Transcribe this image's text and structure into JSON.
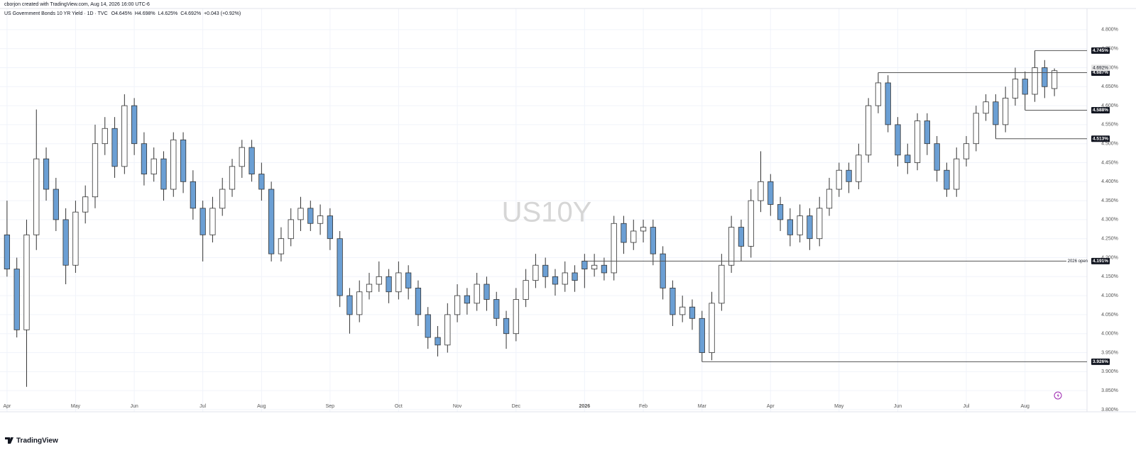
{
  "header": {
    "credit": "cborjon created with TradingView.com, Aug 14, 2026 16:00 UTC-6",
    "logo": "TradingView"
  },
  "chart_data": {
    "type": "candlestick",
    "symbol": "US Government Bonds 10 YR Yield · 1D · TVC",
    "ohlc_text": [
      "O4.645%",
      "H4.698%",
      "L4.625%",
      "C4.692%",
      "+0.043 (+0.92%)"
    ],
    "watermark": "US10Y",
    "categories": [
      "Apr",
      null,
      null,
      null,
      null,
      null,
      null,
      "May",
      null,
      null,
      null,
      null,
      null,
      "Jun",
      null,
      null,
      null,
      null,
      null,
      null,
      "Jul",
      null,
      null,
      null,
      null,
      null,
      "Aug",
      null,
      null,
      null,
      null,
      null,
      null,
      "Sep",
      null,
      null,
      null,
      null,
      null,
      null,
      "Oct",
      null,
      null,
      null,
      null,
      null,
      "Nov",
      null,
      null,
      null,
      null,
      null,
      "Dec",
      null,
      null,
      null,
      null,
      null,
      null,
      "2026",
      null,
      null,
      null,
      null,
      null,
      "Feb",
      null,
      null,
      null,
      null,
      null,
      "Mar",
      null,
      null,
      null,
      null,
      null,
      null,
      "Apr",
      null,
      null,
      null,
      null,
      null,
      null,
      "May",
      null,
      null,
      null,
      null,
      null,
      "Jun",
      null,
      null,
      null,
      null,
      null,
      null,
      "Jul",
      null,
      null,
      null,
      null,
      null,
      "Aug",
      null,
      null,
      null
    ],
    "open": [
      4.26,
      4.17,
      4.01,
      4.26,
      4.46,
      4.38,
      4.3,
      4.18,
      4.32,
      4.36,
      4.5,
      4.54,
      4.44,
      4.6,
      4.5,
      4.42,
      4.46,
      4.38,
      4.51,
      4.4,
      4.33,
      4.26,
      4.33,
      4.38,
      4.44,
      4.49,
      4.42,
      4.38,
      4.21,
      4.25,
      4.3,
      4.33,
      4.29,
      4.31,
      4.25,
      4.1,
      4.05,
      4.11,
      4.13,
      4.15,
      4.11,
      4.16,
      4.12,
      4.05,
      3.99,
      3.97,
      4.05,
      4.1,
      4.08,
      4.13,
      4.09,
      4.04,
      4.0,
      4.09,
      4.14,
      4.18,
      4.15,
      4.13,
      4.16,
      4.191,
      4.17,
      4.18,
      4.16,
      4.29,
      4.24,
      4.27,
      4.28,
      4.21,
      4.12,
      4.05,
      4.07,
      4.04,
      3.95,
      4.08,
      4.18,
      4.28,
      4.23,
      4.35,
      4.4,
      4.34,
      4.3,
      4.26,
      4.31,
      4.25,
      4.33,
      4.38,
      4.43,
      4.4,
      4.47,
      4.6,
      4.66,
      4.55,
      4.47,
      4.45,
      4.56,
      4.5,
      4.43,
      4.38,
      4.46,
      4.5,
      4.58,
      4.61,
      4.55,
      4.62,
      4.67,
      4.63,
      4.7,
      4.645
    ],
    "high": [
      4.35,
      4.2,
      4.3,
      4.59,
      4.49,
      4.41,
      4.33,
      4.35,
      4.39,
      4.55,
      4.57,
      4.57,
      4.63,
      4.62,
      4.53,
      4.49,
      4.48,
      4.53,
      4.53,
      4.43,
      4.35,
      4.36,
      4.41,
      4.46,
      4.51,
      4.51,
      4.45,
      4.4,
      4.28,
      4.33,
      4.36,
      4.35,
      4.34,
      4.33,
      4.27,
      4.12,
      4.14,
      4.16,
      4.19,
      4.17,
      4.19,
      4.18,
      4.14,
      4.07,
      4.02,
      4.08,
      4.13,
      4.12,
      4.16,
      4.15,
      4.11,
      4.06,
      4.12,
      4.17,
      4.21,
      4.2,
      4.17,
      4.19,
      4.18,
      4.21,
      4.21,
      4.2,
      4.31,
      4.31,
      4.3,
      4.3,
      4.3,
      4.23,
      4.14,
      4.1,
      4.09,
      4.06,
      4.11,
      4.21,
      4.31,
      4.3,
      4.38,
      4.48,
      4.42,
      4.36,
      4.33,
      4.34,
      4.33,
      4.36,
      4.41,
      4.45,
      4.45,
      4.5,
      4.62,
      4.687,
      4.68,
      4.57,
      4.5,
      4.58,
      4.58,
      4.52,
      4.45,
      4.49,
      4.52,
      4.6,
      4.63,
      4.63,
      4.65,
      4.7,
      4.69,
      4.745,
      4.72,
      4.698
    ],
    "low": [
      4.15,
      3.99,
      3.86,
      4.22,
      4.35,
      4.27,
      4.13,
      4.16,
      4.29,
      4.33,
      4.47,
      4.41,
      4.42,
      4.47,
      4.39,
      4.4,
      4.35,
      4.36,
      4.37,
      4.3,
      4.19,
      4.24,
      4.31,
      4.36,
      4.41,
      4.4,
      4.35,
      4.19,
      4.19,
      4.23,
      4.27,
      4.27,
      4.26,
      4.22,
      4.07,
      4.0,
      4.03,
      4.09,
      4.11,
      4.08,
      4.09,
      4.09,
      4.02,
      3.96,
      3.94,
      3.95,
      4.03,
      4.05,
      4.06,
      4.06,
      4.02,
      3.96,
      3.98,
      4.07,
      4.12,
      4.12,
      4.1,
      4.11,
      4.11,
      4.12,
      4.15,
      4.14,
      4.14,
      4.21,
      4.22,
      4.24,
      4.18,
      4.09,
      4.02,
      4.03,
      4.01,
      3.926,
      3.93,
      4.06,
      4.16,
      4.19,
      4.2,
      4.32,
      4.31,
      4.27,
      4.23,
      4.24,
      4.22,
      4.23,
      4.31,
      4.36,
      4.37,
      4.38,
      4.45,
      4.58,
      4.53,
      4.44,
      4.42,
      4.43,
      4.47,
      4.4,
      4.36,
      4.36,
      4.44,
      4.48,
      4.56,
      4.513,
      4.53,
      4.6,
      4.588,
      4.61,
      4.62,
      4.625
    ],
    "close": [
      4.17,
      4.01,
      4.26,
      4.46,
      4.38,
      4.3,
      4.18,
      4.32,
      4.36,
      4.5,
      4.54,
      4.44,
      4.6,
      4.5,
      4.42,
      4.46,
      4.38,
      4.51,
      4.4,
      4.33,
      4.26,
      4.33,
      4.38,
      4.44,
      4.49,
      4.42,
      4.38,
      4.21,
      4.25,
      4.3,
      4.33,
      4.29,
      4.31,
      4.25,
      4.1,
      4.05,
      4.11,
      4.13,
      4.15,
      4.11,
      4.16,
      4.12,
      4.05,
      3.99,
      3.97,
      4.05,
      4.1,
      4.08,
      4.13,
      4.09,
      4.04,
      4.0,
      4.09,
      4.14,
      4.18,
      4.15,
      4.13,
      4.16,
      4.14,
      4.17,
      4.18,
      4.16,
      4.29,
      4.24,
      4.27,
      4.28,
      4.21,
      4.12,
      4.05,
      4.07,
      4.04,
      3.95,
      4.08,
      4.18,
      4.28,
      4.23,
      4.35,
      4.4,
      4.34,
      4.3,
      4.26,
      4.31,
      4.25,
      4.33,
      4.38,
      4.43,
      4.4,
      4.47,
      4.6,
      4.66,
      4.55,
      4.47,
      4.45,
      4.56,
      4.5,
      4.43,
      4.38,
      4.46,
      4.5,
      4.58,
      4.61,
      4.55,
      4.62,
      4.67,
      4.63,
      4.7,
      4.65,
      4.692
    ],
    "up_color": "#ffffff",
    "down_color": "#6b9fd4",
    "wick_color": "#333333",
    "ylim": [
      3.795,
      4.852
    ],
    "yticks": [
      {
        "value": 3.8,
        "label": "3.800%"
      },
      {
        "value": 3.85,
        "label": "3.850%"
      },
      {
        "value": 3.9,
        "label": "3.900%"
      },
      {
        "value": 3.95,
        "label": "3.950%"
      },
      {
        "value": 4.0,
        "label": "4.000%"
      },
      {
        "value": 4.05,
        "label": "4.050%"
      },
      {
        "value": 4.1,
        "label": "4.100%"
      },
      {
        "value": 4.15,
        "label": "4.150%"
      },
      {
        "value": 4.2,
        "label": "4.200%"
      },
      {
        "value": 4.25,
        "label": "4.250%"
      },
      {
        "value": 4.3,
        "label": "4.300%"
      },
      {
        "value": 4.35,
        "label": "4.350%"
      },
      {
        "value": 4.4,
        "label": "4.400%"
      },
      {
        "value": 4.45,
        "label": "4.450%"
      },
      {
        "value": 4.5,
        "label": "4.500%"
      },
      {
        "value": 4.55,
        "label": "4.550%"
      },
      {
        "value": 4.6,
        "label": "4.600%"
      },
      {
        "value": 4.65,
        "label": "4.650%"
      },
      {
        "value": 4.7,
        "label": "4.700%"
      },
      {
        "value": 4.75,
        "label": "4.750%"
      },
      {
        "value": 4.8,
        "label": "4.800%"
      }
    ],
    "grid": true,
    "levels": [
      {
        "value": 4.745,
        "label": "4.745%"
      },
      {
        "value": 4.687,
        "label": "4.687%"
      },
      {
        "value": 4.588,
        "label": "4.588%"
      },
      {
        "value": 4.513,
        "label": "4.513%"
      },
      {
        "value": 4.191,
        "label": "4.191%",
        "name": "2026 open"
      },
      {
        "value": 3.926,
        "label": "3.926%"
      }
    ],
    "last_price": {
      "value": 4.692,
      "label": "4.692%"
    }
  }
}
